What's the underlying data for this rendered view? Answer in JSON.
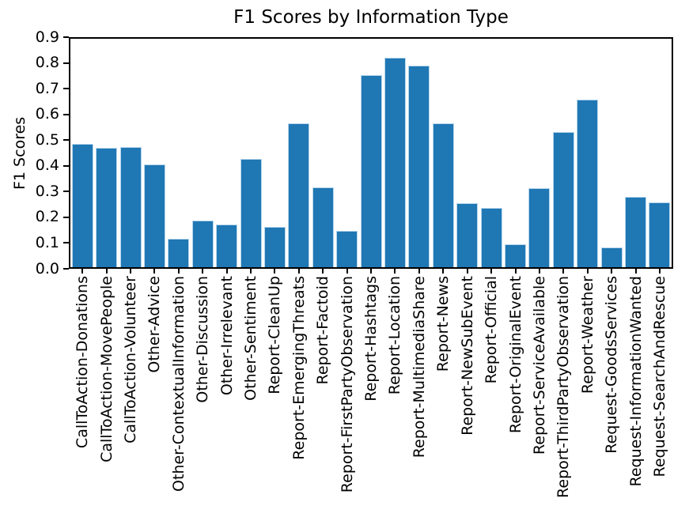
{
  "chart_data": {
    "type": "bar",
    "title": "F1 Scores by Information Type",
    "xlabel": "",
    "ylabel": "F1 Scores",
    "ylim": [
      0.0,
      0.9
    ],
    "yticks": [
      0.0,
      0.1,
      0.2,
      0.3,
      0.4,
      0.5,
      0.6,
      0.7,
      0.8,
      0.9
    ],
    "grid": false,
    "legend": false,
    "bar_color": "#1f77b4",
    "axis_color": "#000000",
    "categories": [
      "CallToAction-Donations",
      "CallToAction-MovePeople",
      "CallToAction-Volunteer",
      "Other-Advice",
      "Other-ContextualInformation",
      "Other-Discussion",
      "Other-Irrelevant",
      "Other-Sentiment",
      "Report-CleanUp",
      "Report-EmergingThreats",
      "Report-Factoid",
      "Report-FirstPartyObservation",
      "Report-Hashtags",
      "Report-Location",
      "Report-MultimediaShare",
      "Report-News",
      "Report-NewSubEvent",
      "Report-Official",
      "Report-OriginalEvent",
      "Report-ServiceAvailable",
      "Report-ThirdPartyObservation",
      "Report-Weather",
      "Request-GoodsServices",
      "Request-InformationWanted",
      "Request-SearchAndRescue"
    ],
    "values": [
      0.486,
      0.47,
      0.474,
      0.405,
      0.112,
      0.184,
      0.168,
      0.428,
      0.16,
      0.567,
      0.316,
      0.144,
      0.757,
      0.825,
      0.794,
      0.567,
      0.252,
      0.233,
      0.091,
      0.313,
      0.532,
      0.66,
      0.079,
      0.277,
      0.255
    ]
  }
}
